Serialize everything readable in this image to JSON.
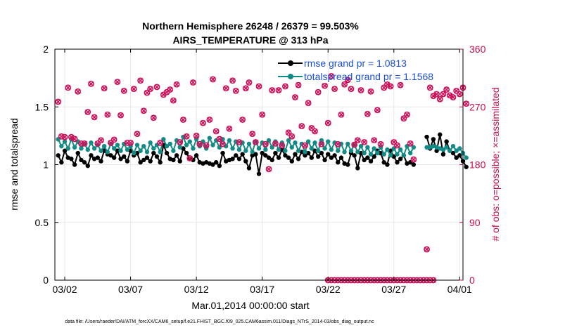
{
  "chart_data": {
    "type": "line",
    "title_line1": "Northern Hemisphere 26248 / 26379 = 99.503%",
    "title_line2": "AIRS_TEMPERATURE @ 313 hPa",
    "xlabel": "Mar.01,2014 00:00:00 start",
    "ylabel_left": "rmse and totalspread",
    "ylabel_right": "# of obs: o=possible; ×=assimilated",
    "footnote": "data file: /Users/raeder/DAI/ATM_forcXX/CAM6_setup/f.e21.FHIST_BGC.f09_025.CAM6assim.011/Diags_NTrS_2014-03/obs_diag_output.nc",
    "x_tick_labels": [
      "03/02",
      "03/07",
      "03/12",
      "03/17",
      "03/22",
      "03/27",
      "04/01"
    ],
    "x_tick_days": [
      1,
      6,
      11,
      16,
      21,
      26,
      31
    ],
    "xlim_days": [
      0.25,
      31.25
    ],
    "ylim_left": [
      0,
      2
    ],
    "yticks_left": [
      "0",
      "0.5",
      "1",
      "1.5",
      "2"
    ],
    "ylim_right": [
      0,
      360
    ],
    "yticks_right": [
      "0",
      "90",
      "180",
      "270",
      "360"
    ],
    "legend": [
      "rmse grand pr = 1.0813",
      "totalspread grand pr = 1.1568"
    ],
    "colors": {
      "rmse": "#000000",
      "spread": "#128a86",
      "obs": "#d0105a",
      "right_axis": "#c8104f",
      "legend_text": "#1b4fd6",
      "grid": "#e8e8e8"
    },
    "series": [
      {
        "name": "rmse",
        "segments": [
          {
            "start_day": 0.5,
            "step": 0.25,
            "values": [
              1.08,
              1.02,
              1.12,
              1.06,
              1.05,
              1.0,
              1.1,
              1.04,
              1.02,
              0.99,
              1.08,
              1.05,
              1.06,
              1.03,
              1.12,
              1.09,
              1.08,
              1.06,
              1.12,
              1.05,
              1.07,
              1.03,
              1.12,
              1.08,
              1.1,
              1.02,
              1.04,
              1.06,
              1.03,
              1.1,
              1.07,
              1.02,
              1.17,
              1.1,
              1.05,
              1.04,
              1.08,
              1.03,
              1.14,
              1.1,
              1.05,
              1.04,
              1.08,
              1.02,
              1.01,
              1.02,
              1.01,
              1.0,
              1.02,
              0.99,
              1.1,
              1.03,
              1.04,
              1.05,
              1.08,
              1.05,
              1.09,
              1.03,
              0.97,
              1.08,
              1.09,
              0.92,
              1.1,
              1.08,
              1.06,
              1.04,
              1.1,
              1.06,
              1.13,
              1.08,
              1.06,
              1.03,
              1.09,
              1.05,
              1.11,
              1.08,
              1.1,
              1.06,
              1.12,
              1.07,
              1.1,
              1.04,
              1.09,
              1.06,
              1.08,
              1.02,
              1.06,
              1.01,
              1.0,
              1.1,
              1.08,
              0.97,
              1.1,
              1.04,
              1.06,
              1.03,
              1.07,
              1.12,
              1.1,
              1.02,
              1.0,
              1.12,
              1.07,
              1.02,
              1.05,
              1.08,
              1.01,
              1.02,
              1.0
            ]
          },
          {
            "start_day": 28.5,
            "step": 0.25,
            "values": [
              1.24,
              1.14,
              1.22,
              1.12,
              1.26,
              1.09,
              1.2,
              1.12,
              1.1,
              1.06,
              1.08,
              1.03,
              0.98
            ]
          }
        ]
      },
      {
        "name": "totalspread",
        "segments": [
          {
            "start_day": 0.5,
            "step": 0.25,
            "values": [
              1.22,
              1.16,
              1.2,
              1.14,
              1.22,
              1.15,
              1.2,
              1.14,
              1.18,
              1.13,
              1.19,
              1.14,
              1.17,
              1.12,
              1.16,
              1.11,
              1.18,
              1.14,
              1.17,
              1.12,
              1.18,
              1.13,
              1.16,
              1.1,
              1.17,
              1.12,
              1.16,
              1.11,
              1.19,
              1.14,
              1.17,
              1.11,
              1.22,
              1.16,
              1.18,
              1.12,
              1.21,
              1.15,
              1.24,
              1.17,
              1.2,
              1.14,
              1.22,
              1.16,
              1.2,
              1.14,
              1.23,
              1.17,
              1.21,
              1.15,
              1.22,
              1.16,
              1.21,
              1.14,
              1.2,
              1.13,
              1.19,
              1.12,
              1.18,
              1.11,
              1.2,
              1.14,
              1.19,
              1.13,
              1.21,
              1.15,
              1.2,
              1.13,
              1.19,
              1.12,
              1.21,
              1.15,
              1.19,
              1.12,
              1.18,
              1.11,
              1.2,
              1.14,
              1.19,
              1.12,
              1.21,
              1.14,
              1.2,
              1.13,
              1.19,
              1.12,
              1.18,
              1.11,
              1.18,
              1.12,
              1.17,
              1.11,
              1.16,
              1.1,
              1.15,
              1.09,
              1.14,
              1.1,
              1.15,
              1.09,
              1.13,
              1.08,
              1.14,
              1.09,
              1.13,
              1.08,
              1.16,
              1.1,
              1.15
            ]
          },
          {
            "start_day": 28.5,
            "step": 0.25,
            "values": [
              1.15,
              1.15,
              1.16,
              1.15,
              1.14,
              1.13,
              1.15,
              1.12,
              1.16,
              1.12,
              1.14,
              1.1,
              1.06
            ]
          }
        ]
      },
      {
        "name": "obs_count",
        "axis": "right",
        "segments": [
          {
            "start_day": 0.5,
            "step": 0.25,
            "values": [
              278,
              224,
              223,
              300,
              223,
              220,
              294,
              213,
              213,
              262,
              306,
              254,
              213,
              218,
              299,
              258,
              214,
              219,
              309,
              257,
              295,
              214,
              214,
              298,
              228,
              311,
              264,
              292,
              298,
              253,
              301,
              214,
              289,
              293,
              297,
              280,
              305,
              215,
              250,
              224,
              190,
              308,
              225,
              212,
              245,
              210,
              250,
              313,
              232,
              220,
              212,
              299,
              236,
              311,
              295,
              215,
              250,
              299,
              308,
              228,
              215,
              302,
              258,
              212,
              173,
              296,
              213,
              296,
              210,
              302,
              230,
              224,
              285,
              304,
              240,
              210,
              276,
              237,
              232,
              293,
              212,
              303,
              245,
              318,
              298,
              212,
              258,
              305,
              312,
              298,
              211,
              218,
              296,
              215,
              259,
              294,
              218,
              265,
              212,
              300,
              305,
              302,
              215,
              210,
              304,
              252,
              258,
              213,
              188
            ]
          },
          {
            "start_day": 21,
            "step": 0.25,
            "values": [
              0,
              0,
              0,
              0,
              0,
              0,
              0,
              0,
              0,
              0,
              0,
              0,
              0,
              0,
              0,
              0,
              0,
              0,
              0,
              0,
              0,
              0,
              0,
              0,
              0,
              0,
              0,
              0,
              0,
              0,
              0,
              0,
              0
            ]
          },
          {
            "start_day": 28.5,
            "step": 0.25,
            "values": [
              48,
              300,
              287,
              290,
              282,
              290,
              297,
              288,
              285,
              295,
              290,
              300,
              275
            ]
          }
        ]
      }
    ]
  }
}
